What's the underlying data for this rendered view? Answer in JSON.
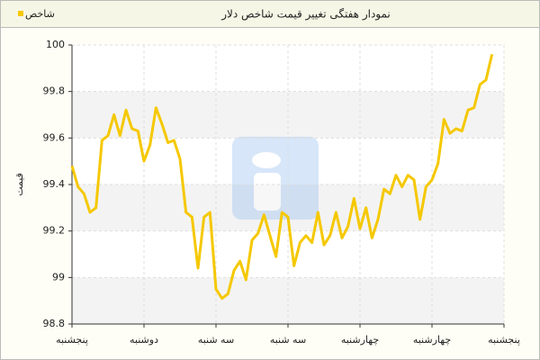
{
  "chart_data": {
    "type": "line",
    "title": "نمودار هفتگی تغییر قیمت شاخص دلار",
    "ylabel": "قیمت",
    "x": [
      0,
      1,
      2,
      3,
      4,
      5,
      6,
      7,
      8,
      9,
      10,
      11,
      12,
      13,
      14,
      15,
      16,
      17,
      18,
      19,
      20,
      21,
      22,
      23,
      24,
      25,
      26,
      27,
      28,
      29,
      30,
      31,
      32,
      33,
      34,
      35,
      36,
      37,
      38,
      39,
      40,
      41,
      42,
      43,
      44,
      45,
      46,
      47,
      48,
      49,
      50,
      51,
      52,
      53,
      54,
      55,
      56,
      57,
      58,
      59,
      60,
      61,
      62,
      63,
      64,
      65,
      66,
      67,
      68,
      69,
      70
    ],
    "series": [
      {
        "name": "شاخص",
        "color": "#f5c800",
        "values": [
          99.48,
          99.39,
          99.36,
          99.28,
          99.3,
          99.59,
          99.61,
          99.7,
          99.61,
          99.72,
          99.64,
          99.63,
          99.5,
          99.57,
          99.73,
          99.66,
          99.58,
          99.59,
          99.51,
          99.28,
          99.26,
          99.04,
          99.26,
          99.28,
          98.95,
          98.91,
          98.93,
          99.03,
          99.07,
          98.99,
          99.16,
          99.19,
          99.27,
          99.18,
          99.09,
          99.28,
          99.26,
          99.05,
          99.15,
          99.18,
          99.15,
          99.28,
          99.14,
          99.18,
          99.28,
          99.17,
          99.22,
          99.34,
          99.21,
          99.3,
          99.17,
          99.25,
          99.38,
          99.36,
          99.44,
          99.39,
          99.44,
          99.42,
          99.25,
          99.39,
          99.42,
          99.49,
          99.68,
          99.62,
          99.64,
          99.63,
          99.72,
          99.73,
          99.83,
          99.85,
          99.96
        ]
      }
    ],
    "xlim": [
      0,
      72
    ],
    "xticks": [
      {
        "value": 0,
        "label": "پنجشنبه"
      },
      {
        "value": 12,
        "label": "دوشنبه"
      },
      {
        "value": 24,
        "label": "سه شنبه"
      },
      {
        "value": 36,
        "label": "سه شنبه"
      },
      {
        "value": 48,
        "label": "چهارشنبه"
      },
      {
        "value": 60,
        "label": "چهارشنبه"
      },
      {
        "value": 72,
        "label": "پنجشنبه"
      }
    ],
    "ylim": [
      98.8,
      100
    ],
    "yticks": [
      98.8,
      99,
      99.2,
      99.4,
      99.6,
      99.8,
      100
    ],
    "grid": true
  }
}
